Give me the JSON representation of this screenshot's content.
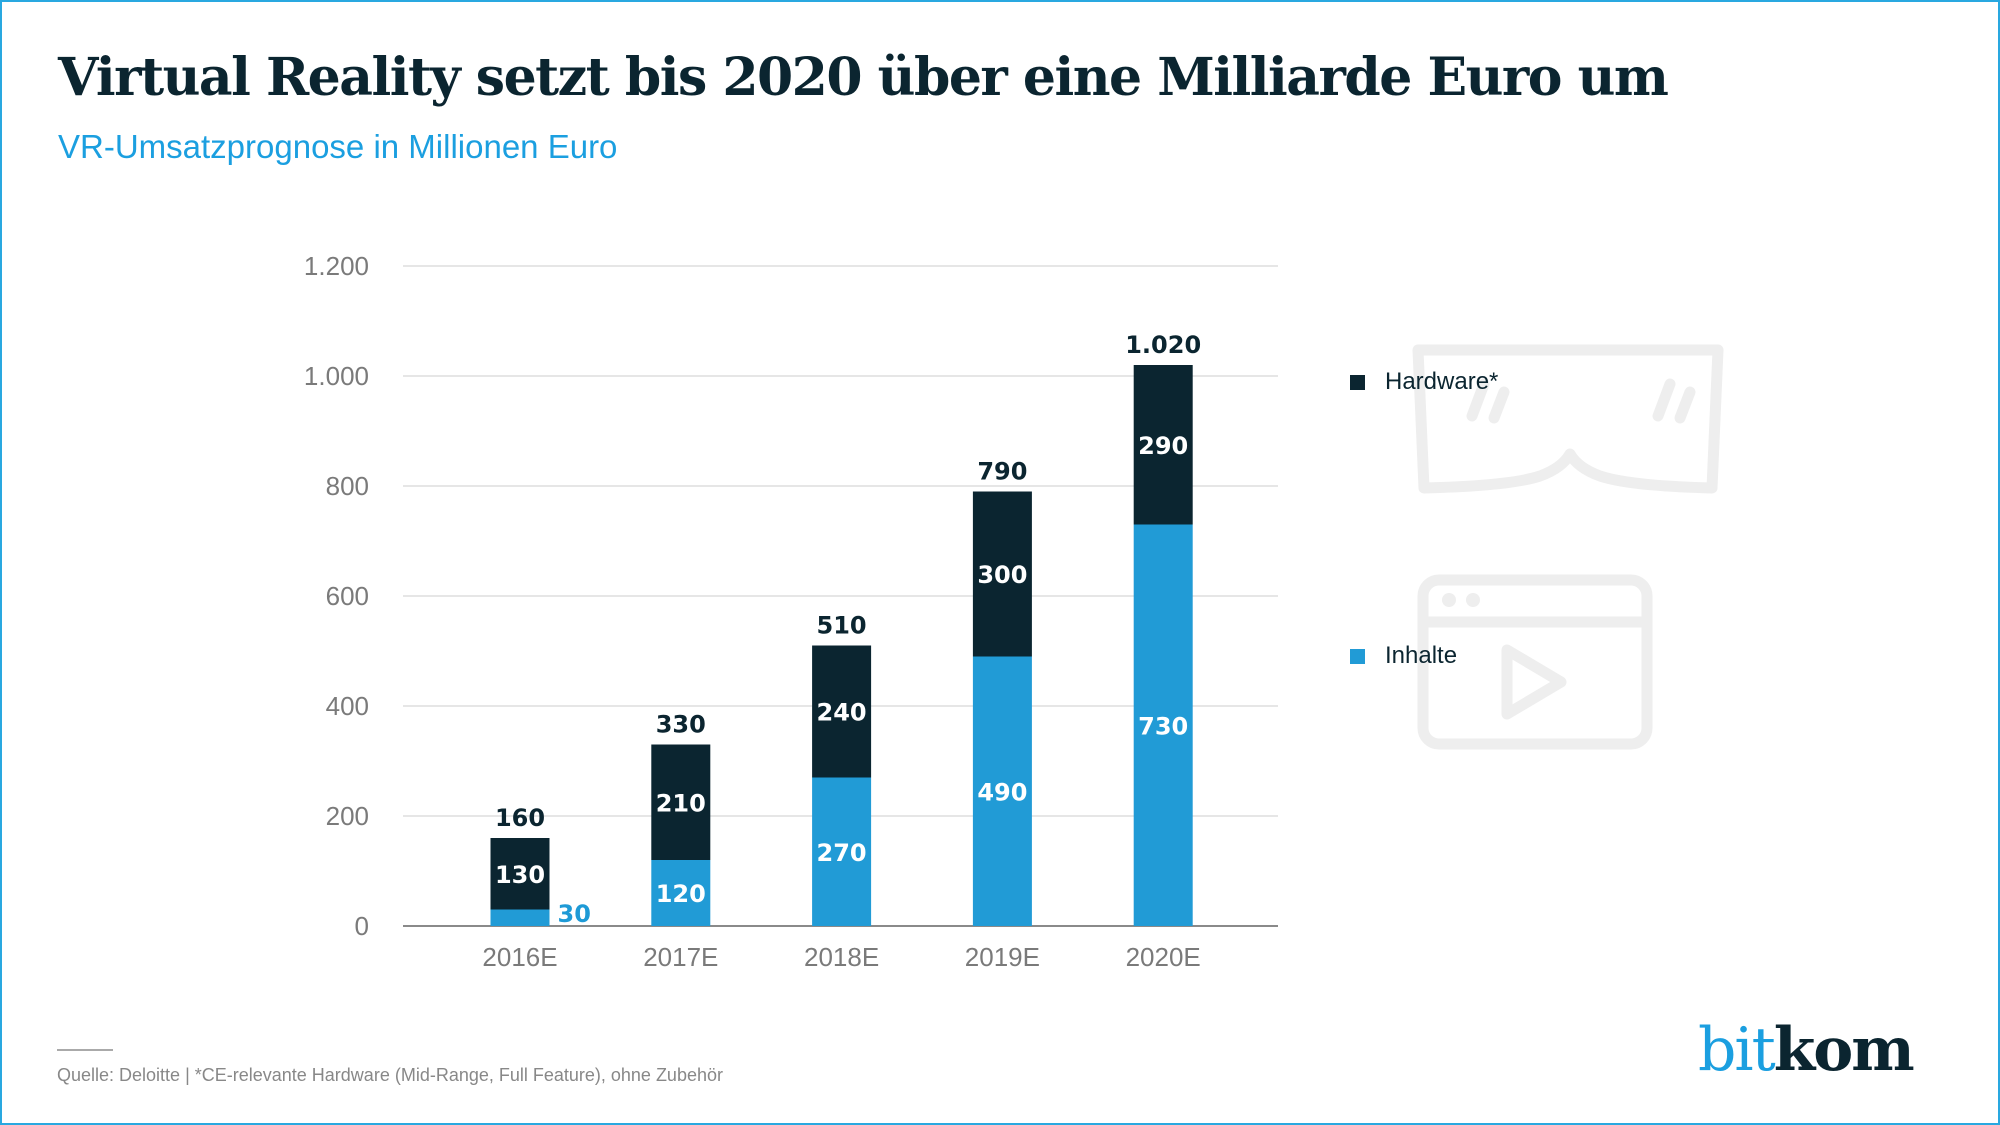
{
  "header": {
    "title": "Virtual Reality setzt bis 2020 über eine Milliarde Euro um",
    "subtitle": "VR-Umsatzprognose in Millionen Euro"
  },
  "colors": {
    "hardware": "#0b2530",
    "inhalte": "#219bd6",
    "accent": "#1b9fe0",
    "grid": "#dddddd",
    "axis": "#8a8a8a"
  },
  "chart_data": {
    "type": "bar",
    "stacked": true,
    "title": "Virtual Reality setzt bis 2020 über eine Milliarde Euro um",
    "subtitle": "VR-Umsatzprognose in Millionen Euro",
    "xlabel": "",
    "ylabel": "",
    "categories": [
      "2016E",
      "2017E",
      "2018E",
      "2019E",
      "2020E"
    ],
    "series": [
      {
        "name": "Inhalte",
        "color": "#219bd6",
        "values": [
          30,
          120,
          270,
          490,
          730
        ],
        "labels": [
          "30",
          "120",
          "270",
          "490",
          "730"
        ]
      },
      {
        "name": "Hardware*",
        "color": "#0b2530",
        "values": [
          130,
          210,
          240,
          300,
          290
        ],
        "labels": [
          "130",
          "210",
          "240",
          "300",
          "290"
        ]
      }
    ],
    "totals": [
      160,
      330,
      510,
      790,
      1020
    ],
    "total_labels": [
      "160",
      "330",
      "510",
      "790",
      "1.020"
    ],
    "ylim": [
      0,
      1200
    ],
    "yticks": [
      0,
      200,
      400,
      600,
      800,
      1000,
      1200
    ],
    "ytick_labels": [
      "0",
      "200",
      "400",
      "600",
      "800",
      "1.000",
      "1.200"
    ],
    "grid": true,
    "legend": {
      "placement": "right",
      "entries": [
        "Hardware*",
        "Inhalte"
      ]
    }
  },
  "legend": {
    "items": [
      {
        "label": "Hardware*",
        "icon": "vr-goggles-icon"
      },
      {
        "label": "Inhalte",
        "icon": "video-player-icon"
      }
    ]
  },
  "footer": {
    "source": "Quelle: Deloitte | *CE-relevante Hardware (Mid-Range, Full Feature), ohne Zubehör"
  },
  "logo": {
    "part1": "bit",
    "part2": "kom"
  }
}
